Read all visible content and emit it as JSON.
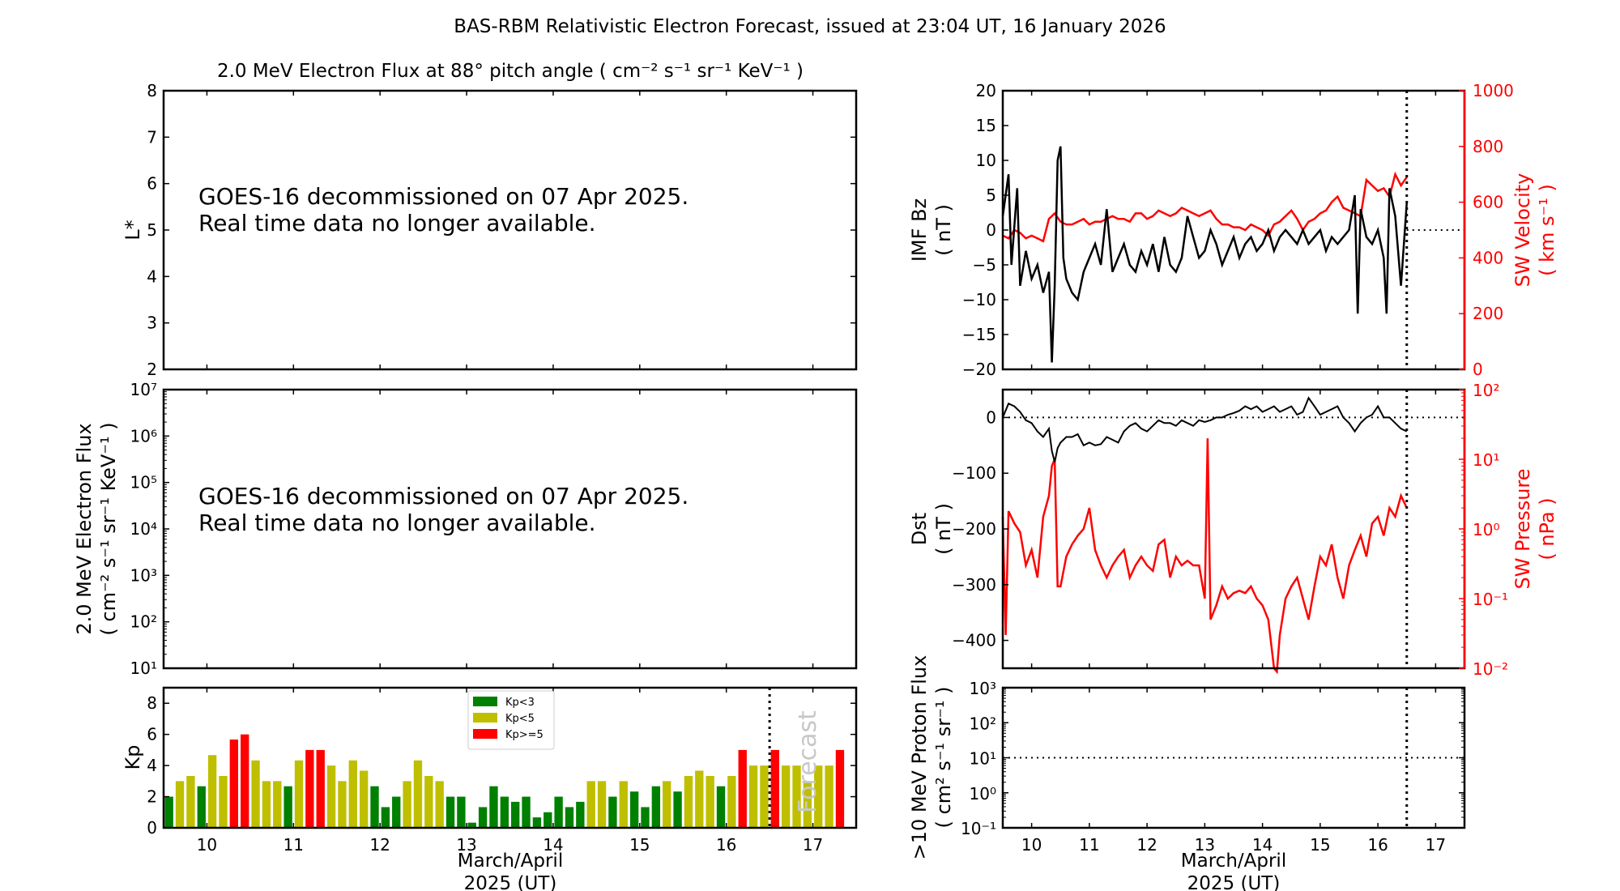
{
  "title": "BAS-RBM Relativistic Electron Forecast, issued at 23:04 UT, 16 January 2026",
  "colors": {
    "kp_low": "#008000",
    "kp_mid": "#bfbf00",
    "kp_high": "#ff0000",
    "red_axis": "#ff0000"
  },
  "chart_data": [
    {
      "id": "lstar",
      "type": "heatmap",
      "title": "2.0 MeV Electron Flux at 88° pitch angle ( cm⁻² s⁻¹ sr⁻¹ KeV⁻¹ )",
      "ylabel": "L*",
      "ylim": [
        2,
        8
      ],
      "yticks": [
        "2",
        "3",
        "4",
        "5",
        "6",
        "7",
        "8"
      ],
      "xlim": [
        9.5,
        17.5
      ],
      "message": [
        "GOES-16 decommissioned on 07 Apr 2025.",
        "Real time data no longer available."
      ]
    },
    {
      "id": "eflux",
      "type": "line",
      "ylabel": [
        "2.0 MeV Electron Flux",
        "( cm⁻² s⁻¹ sr⁻¹ KeV⁻¹ )"
      ],
      "yscale": "log",
      "ylim_exp": [
        1,
        7
      ],
      "yticks": [
        "10¹",
        "10²",
        "10³",
        "10⁴",
        "10⁵",
        "10⁶",
        "10⁷"
      ],
      "xlim": [
        9.5,
        17.5
      ],
      "message": [
        "GOES-16 decommissioned on 07 Apr 2025.",
        "Real time data no longer available."
      ]
    },
    {
      "id": "kp",
      "type": "bar",
      "ylabel": "Kp",
      "xlabel": [
        "March/April",
        "2025 (UT)"
      ],
      "ylim": [
        0,
        9
      ],
      "yticks": [
        "0",
        "2",
        "4",
        "6",
        "8"
      ],
      "xlim": [
        9.5,
        17.5
      ],
      "xticks": [
        "10",
        "11",
        "12",
        "13",
        "14",
        "15",
        "16",
        "17"
      ],
      "bin_days": 0.125,
      "start": 9.5,
      "forecast_start": 16.5,
      "forecast_label": "Forecast",
      "legend": [
        "Kp<3",
        "Kp<5",
        "Kp>=5"
      ],
      "legend_position": "top-center",
      "values": [
        2,
        3,
        3.33,
        2.67,
        4.67,
        3.33,
        5.67,
        6,
        4.33,
        3,
        3,
        2.67,
        4.33,
        5,
        5,
        4,
        3,
        4.33,
        3.67,
        2.67,
        1.33,
        2,
        3,
        4.33,
        3.33,
        3,
        2,
        2,
        0.33,
        1.33,
        2.67,
        2,
        1.67,
        2,
        0.67,
        1,
        2,
        1.33,
        1.67,
        3,
        3,
        2,
        3,
        2.33,
        1.33,
        2.67,
        3,
        2.33,
        3.33,
        3.67,
        3.33,
        2.67,
        3.33,
        5,
        4,
        4,
        5,
        4,
        4,
        3,
        4,
        4,
        5
      ]
    },
    {
      "id": "imf",
      "type": "line",
      "ylabel": [
        "IMF Bz",
        "( nT )"
      ],
      "ylim": [
        -20,
        20
      ],
      "yticks": [
        "−20",
        "−15",
        "−10",
        "−5",
        "0",
        "5",
        "10",
        "15",
        "20"
      ],
      "y2label": [
        "SW Velocity",
        "( km s⁻¹ )"
      ],
      "y2lim": [
        0,
        1000
      ],
      "y2ticks": [
        "0",
        "200",
        "400",
        "600",
        "800",
        "1000"
      ],
      "xlim": [
        9.5,
        17.5
      ],
      "now": 16.5,
      "series": [
        {
          "name": "IMF Bz",
          "color": "#000000",
          "x": [
            9.5,
            9.6,
            9.65,
            9.75,
            9.8,
            9.9,
            10.0,
            10.1,
            10.2,
            10.3,
            10.35,
            10.4,
            10.45,
            10.5,
            10.55,
            10.6,
            10.7,
            10.8,
            10.9,
            11.0,
            11.1,
            11.2,
            11.3,
            11.4,
            11.5,
            11.6,
            11.7,
            11.8,
            11.9,
            12.0,
            12.1,
            12.2,
            12.3,
            12.4,
            12.5,
            12.6,
            12.7,
            12.8,
            12.9,
            13.0,
            13.1,
            13.2,
            13.3,
            13.4,
            13.5,
            13.6,
            13.7,
            13.8,
            13.9,
            14.0,
            14.1,
            14.2,
            14.3,
            14.4,
            14.5,
            14.6,
            14.7,
            14.8,
            14.9,
            15.0,
            15.1,
            15.2,
            15.3,
            15.4,
            15.5,
            15.6,
            15.65,
            15.7,
            15.8,
            15.9,
            16.0,
            16.1,
            16.15,
            16.2,
            16.3,
            16.4,
            16.5
          ],
          "y": [
            2,
            8,
            -5,
            6,
            -8,
            -3,
            -7,
            -5,
            -9,
            -6,
            -19,
            -8,
            10,
            12,
            -4,
            -7,
            -9,
            -10,
            -6,
            -4,
            -2,
            -5,
            3,
            -6,
            -4,
            -2,
            -5,
            -6,
            -3,
            -5,
            -2,
            -6,
            -1,
            -5,
            -6,
            -4,
            2,
            -1,
            -4,
            -3,
            0,
            -2,
            -5,
            -3,
            -1,
            -4,
            -2,
            -1,
            -3,
            -2,
            0,
            -3,
            -1,
            0,
            -1,
            -2,
            0,
            -2,
            -1,
            0,
            -3,
            -1,
            -2,
            -1,
            0,
            5,
            -12,
            3,
            -1,
            -2,
            0,
            -4,
            -12,
            6,
            2,
            -8,
            4
          ]
        },
        {
          "name": "SW Velocity",
          "color": "#ff0000",
          "axis": "y2",
          "x": [
            9.5,
            9.6,
            9.7,
            9.8,
            9.9,
            10.0,
            10.1,
            10.2,
            10.3,
            10.35,
            10.4,
            10.5,
            10.6,
            10.7,
            10.8,
            10.9,
            11.0,
            11.1,
            11.2,
            11.3,
            11.4,
            11.5,
            11.6,
            11.7,
            11.8,
            11.9,
            12.0,
            12.1,
            12.2,
            12.3,
            12.4,
            12.5,
            12.6,
            12.7,
            12.8,
            12.9,
            13.0,
            13.1,
            13.2,
            13.3,
            13.4,
            13.5,
            13.6,
            13.7,
            13.8,
            13.9,
            14.0,
            14.1,
            14.2,
            14.3,
            14.4,
            14.5,
            14.6,
            14.7,
            14.8,
            14.9,
            15.0,
            15.1,
            15.2,
            15.3,
            15.4,
            15.5,
            15.6,
            15.7,
            15.8,
            15.9,
            16.0,
            16.1,
            16.2,
            16.3,
            16.4,
            16.5
          ],
          "y": [
            480,
            470,
            500,
            490,
            470,
            480,
            470,
            460,
            540,
            550,
            560,
            530,
            520,
            520,
            530,
            540,
            520,
            530,
            530,
            540,
            550,
            540,
            540,
            530,
            560,
            560,
            540,
            550,
            570,
            560,
            550,
            560,
            580,
            570,
            560,
            550,
            560,
            570,
            540,
            520,
            520,
            510,
            510,
            500,
            520,
            510,
            500,
            480,
            520,
            530,
            550,
            570,
            540,
            500,
            530,
            540,
            560,
            570,
            600,
            620,
            580,
            570,
            560,
            550,
            680,
            660,
            640,
            650,
            620,
            700,
            660,
            690
          ]
        }
      ]
    },
    {
      "id": "dst",
      "type": "line",
      "ylabel": [
        "Dst",
        "( nT )"
      ],
      "ylim": [
        -450,
        50
      ],
      "yticks": [
        "−400",
        "−300",
        "−200",
        "−100",
        "0"
      ],
      "y2label": [
        "SW Pressure",
        "( nPa )"
      ],
      "y2scale": "log",
      "y2lim_exp": [
        -2,
        2
      ],
      "y2ticks": [
        "10⁻²",
        "10⁻¹",
        "10⁰",
        "10¹",
        "10²"
      ],
      "xlim": [
        9.5,
        17.5
      ],
      "now": 16.5,
      "series": [
        {
          "name": "Dst",
          "color": "#000000",
          "x": [
            9.5,
            9.6,
            9.7,
            9.8,
            9.9,
            10.0,
            10.1,
            10.2,
            10.3,
            10.35,
            10.4,
            10.45,
            10.5,
            10.6,
            10.7,
            10.8,
            10.9,
            11.0,
            11.1,
            11.2,
            11.3,
            11.4,
            11.5,
            11.6,
            11.7,
            11.8,
            11.9,
            12.0,
            12.1,
            12.2,
            12.3,
            12.4,
            12.5,
            12.6,
            12.7,
            12.8,
            12.9,
            13.0,
            13.1,
            13.2,
            13.3,
            13.4,
            13.5,
            13.6,
            13.7,
            13.8,
            13.9,
            14.0,
            14.1,
            14.2,
            14.3,
            14.4,
            14.5,
            14.6,
            14.7,
            14.8,
            14.9,
            15.0,
            15.1,
            15.2,
            15.3,
            15.4,
            15.5,
            15.6,
            15.7,
            15.8,
            15.9,
            16.0,
            16.1,
            16.2,
            16.3,
            16.4,
            16.5
          ],
          "y": [
            0,
            25,
            20,
            10,
            -5,
            -10,
            -25,
            -35,
            -20,
            -60,
            -80,
            -55,
            -45,
            -35,
            -35,
            -30,
            -50,
            -45,
            -50,
            -48,
            -35,
            -40,
            -45,
            -25,
            -15,
            -10,
            -20,
            -25,
            -15,
            -5,
            -10,
            -10,
            -15,
            -5,
            -10,
            -15,
            -5,
            -8,
            -5,
            0,
            0,
            5,
            8,
            12,
            20,
            15,
            20,
            10,
            15,
            20,
            10,
            15,
            20,
            5,
            10,
            35,
            20,
            5,
            10,
            15,
            20,
            0,
            -10,
            -25,
            -10,
            0,
            5,
            20,
            0,
            0,
            -10,
            -20,
            -25
          ]
        },
        {
          "name": "SW Pressure",
          "color": "#ff0000",
          "axis": "y2",
          "scale": "log",
          "x": [
            9.5,
            9.55,
            9.6,
            9.7,
            9.8,
            9.9,
            10.0,
            10.1,
            10.2,
            10.3,
            10.35,
            10.4,
            10.45,
            10.5,
            10.6,
            10.7,
            10.8,
            10.9,
            11.0,
            11.1,
            11.2,
            11.3,
            11.4,
            11.5,
            11.6,
            11.7,
            11.8,
            11.9,
            12.0,
            12.1,
            12.2,
            12.3,
            12.4,
            12.5,
            12.6,
            12.7,
            12.8,
            12.9,
            13.0,
            13.05,
            13.1,
            13.2,
            13.3,
            13.4,
            13.5,
            13.6,
            13.7,
            13.8,
            13.9,
            14.0,
            14.1,
            14.2,
            14.25,
            14.3,
            14.4,
            14.5,
            14.6,
            14.7,
            14.8,
            14.9,
            15.0,
            15.1,
            15.2,
            15.3,
            15.4,
            15.5,
            15.6,
            15.7,
            15.8,
            15.9,
            16.0,
            16.1,
            16.2,
            16.3,
            16.4,
            16.5
          ],
          "y": [
            1.5,
            0.03,
            1.8,
            1.2,
            0.9,
            0.3,
            0.5,
            0.2,
            1.5,
            3.0,
            8.0,
            10.0,
            0.15,
            0.15,
            0.4,
            0.6,
            0.8,
            1.0,
            2.0,
            0.5,
            0.3,
            0.2,
            0.3,
            0.4,
            0.5,
            0.2,
            0.3,
            0.4,
            0.3,
            0.25,
            0.6,
            0.7,
            0.2,
            0.4,
            0.3,
            0.35,
            0.3,
            0.3,
            0.1,
            20.0,
            0.05,
            0.08,
            0.15,
            0.1,
            0.12,
            0.13,
            0.12,
            0.15,
            0.1,
            0.08,
            0.05,
            0.01,
            0.005,
            0.03,
            0.1,
            0.15,
            0.2,
            0.1,
            0.05,
            0.15,
            0.4,
            0.3,
            0.6,
            0.2,
            0.1,
            0.3,
            0.5,
            0.8,
            0.4,
            1.2,
            1.5,
            0.8,
            2.0,
            1.5,
            3.0,
            2.0
          ]
        }
      ]
    },
    {
      "id": "proton",
      "type": "line",
      "ylabel": [
        ">10 MeV Proton Flux",
        "( cm² s⁻¹ sr⁻¹ )"
      ],
      "xlabel": [
        "March/April",
        "2025 (UT)"
      ],
      "yscale": "log",
      "ylim_exp": [
        -1,
        3
      ],
      "yticks": [
        "10⁻¹",
        "10⁰",
        "10¹",
        "10²",
        "10³"
      ],
      "threshold": 10,
      "xlim": [
        9.5,
        17.5
      ],
      "xticks": [
        "10",
        "11",
        "12",
        "13",
        "14",
        "15",
        "16",
        "17"
      ],
      "now": 16.5
    }
  ]
}
